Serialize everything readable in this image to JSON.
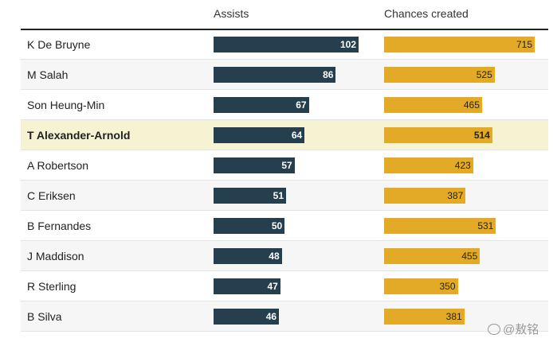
{
  "chart_data": {
    "type": "bar",
    "orientation": "horizontal",
    "columns": [
      "Assists",
      "Chances created"
    ],
    "categories": [
      "K De Bruyne",
      "M Salah",
      "Son Heung-Min",
      "T Alexander-Arnold",
      "A Robertson",
      "C Eriksen",
      "B Fernandes",
      "J Maddison",
      "R Sterling",
      "B Silva"
    ],
    "series": [
      {
        "name": "Assists",
        "values": [
          102,
          86,
          67,
          64,
          57,
          51,
          50,
          48,
          47,
          46
        ],
        "color": "#253f4f"
      },
      {
        "name": "Chances created",
        "values": [
          715,
          525,
          465,
          514,
          423,
          387,
          531,
          455,
          350,
          381
        ],
        "color": "#e2aa26"
      }
    ],
    "highlight": "T Alexander-Arnold",
    "highlight_color": "#f5f3d1",
    "title": "",
    "xlabel": "",
    "ylabel": "",
    "legend": "none",
    "grid": false
  },
  "watermark": {
    "text": "@敖铭"
  }
}
